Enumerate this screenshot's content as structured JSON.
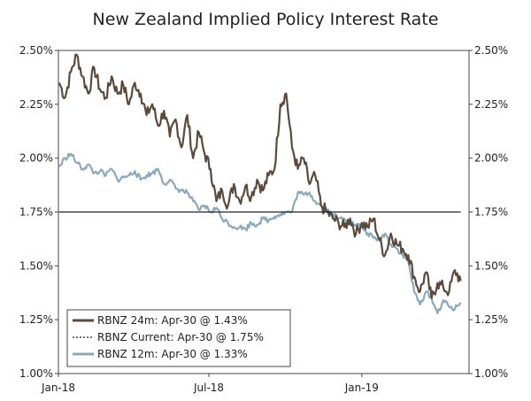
{
  "chart_data": {
    "type": "line",
    "title": "New Zealand Implied Policy Interest Rate",
    "ylim": [
      1.0,
      2.5
    ],
    "y_ticks": [
      "1.00%",
      "1.25%",
      "1.50%",
      "1.75%",
      "2.00%",
      "2.25%",
      "2.50%"
    ],
    "x_ticks": [
      "Jan-18",
      "Jul-18",
      "Jan-19"
    ],
    "grid": false,
    "legend_position": "bottom-left",
    "legend": [
      "RBNZ 24m: Apr-30 @ 1.43%",
      "RBNZ Current: Apr-30 @ 1.75%",
      "RBNZ 12m: Apr-30 @ 1.33%"
    ],
    "series": [
      {
        "name": "RBNZ 24m",
        "color": "#5a4a3e",
        "style": "solid",
        "x": [
          "2018-01-02",
          "2018-01-09",
          "2018-01-16",
          "2018-01-23",
          "2018-01-30",
          "2018-02-06",
          "2018-02-13",
          "2018-02-20",
          "2018-02-27",
          "2018-03-06",
          "2018-03-13",
          "2018-03-20",
          "2018-03-27",
          "2018-04-03",
          "2018-04-10",
          "2018-04-17",
          "2018-04-24",
          "2018-05-01",
          "2018-05-08",
          "2018-05-15",
          "2018-05-22",
          "2018-05-29",
          "2018-06-05",
          "2018-06-12",
          "2018-06-19",
          "2018-06-26",
          "2018-07-03",
          "2018-07-10",
          "2018-07-17",
          "2018-07-24",
          "2018-07-31",
          "2018-08-07",
          "2018-08-14",
          "2018-08-21",
          "2018-08-28",
          "2018-09-04",
          "2018-09-11",
          "2018-09-18",
          "2018-09-25",
          "2018-10-02",
          "2018-10-09",
          "2018-10-16",
          "2018-10-23",
          "2018-10-30",
          "2018-11-06",
          "2018-11-13",
          "2018-11-20",
          "2018-11-27",
          "2018-12-04",
          "2018-12-11",
          "2018-12-18",
          "2018-12-25",
          "2019-01-01",
          "2019-01-08",
          "2019-01-15",
          "2019-01-22",
          "2019-01-29",
          "2019-02-05",
          "2019-02-12",
          "2019-02-19",
          "2019-02-26",
          "2019-03-05",
          "2019-03-12",
          "2019-03-19",
          "2019-03-26",
          "2019-04-02",
          "2019-04-09",
          "2019-04-16",
          "2019-04-23",
          "2019-04-30"
        ],
        "values": [
          2.35,
          2.28,
          2.4,
          2.48,
          2.38,
          2.3,
          2.42,
          2.32,
          2.28,
          2.38,
          2.3,
          2.34,
          2.25,
          2.35,
          2.3,
          2.2,
          2.25,
          2.15,
          2.22,
          2.1,
          2.18,
          2.05,
          2.2,
          2.0,
          2.12,
          2.02,
          1.95,
          1.8,
          1.85,
          1.78,
          1.88,
          1.8,
          1.87,
          1.82,
          1.9,
          1.85,
          1.92,
          1.95,
          2.25,
          2.3,
          2.05,
          1.95,
          2.0,
          1.88,
          1.92,
          1.78,
          1.75,
          1.72,
          1.7,
          1.68,
          1.72,
          1.65,
          1.7,
          1.68,
          1.72,
          1.62,
          1.55,
          1.65,
          1.6,
          1.58,
          1.55,
          1.45,
          1.38,
          1.47,
          1.35,
          1.42,
          1.4,
          1.38,
          1.48,
          1.43
        ]
      },
      {
        "name": "RBNZ Current",
        "color": "#222222",
        "style": "solid",
        "x": [
          "2018-01-02",
          "2019-04-30"
        ],
        "values": [
          1.75,
          1.75
        ]
      },
      {
        "name": "RBNZ 12m",
        "color": "#8fa8b8",
        "style": "solid",
        "x": [
          "2018-01-02",
          "2018-01-09",
          "2018-01-16",
          "2018-01-23",
          "2018-01-30",
          "2018-02-06",
          "2018-02-13",
          "2018-02-20",
          "2018-02-27",
          "2018-03-06",
          "2018-03-13",
          "2018-03-20",
          "2018-03-27",
          "2018-04-03",
          "2018-04-10",
          "2018-04-17",
          "2018-04-24",
          "2018-05-01",
          "2018-05-08",
          "2018-05-15",
          "2018-05-22",
          "2018-05-29",
          "2018-06-05",
          "2018-06-12",
          "2018-06-19",
          "2018-06-26",
          "2018-07-03",
          "2018-07-10",
          "2018-07-17",
          "2018-07-24",
          "2018-07-31",
          "2018-08-07",
          "2018-08-14",
          "2018-08-21",
          "2018-08-28",
          "2018-09-04",
          "2018-09-11",
          "2018-09-18",
          "2018-09-25",
          "2018-10-02",
          "2018-10-09",
          "2018-10-16",
          "2018-10-23",
          "2018-10-30",
          "2018-11-06",
          "2018-11-13",
          "2018-11-20",
          "2018-11-27",
          "2018-12-04",
          "2018-12-11",
          "2018-12-18",
          "2018-12-25",
          "2019-01-01",
          "2019-01-08",
          "2019-01-15",
          "2019-01-22",
          "2019-01-29",
          "2019-02-05",
          "2019-02-12",
          "2019-02-19",
          "2019-02-26",
          "2019-03-05",
          "2019-03-12",
          "2019-03-19",
          "2019-03-26",
          "2019-04-02",
          "2019-04-09",
          "2019-04-16",
          "2019-04-23",
          "2019-04-30"
        ],
        "values": [
          1.96,
          2.0,
          2.02,
          1.98,
          1.95,
          1.97,
          1.93,
          1.94,
          1.92,
          1.95,
          1.9,
          1.91,
          1.92,
          1.94,
          1.9,
          1.92,
          1.93,
          1.95,
          1.88,
          1.9,
          1.86,
          1.85,
          1.84,
          1.8,
          1.76,
          1.78,
          1.75,
          1.77,
          1.72,
          1.7,
          1.68,
          1.68,
          1.67,
          1.7,
          1.69,
          1.72,
          1.71,
          1.73,
          1.74,
          1.75,
          1.75,
          1.84,
          1.83,
          1.84,
          1.8,
          1.78,
          1.76,
          1.74,
          1.72,
          1.72,
          1.7,
          1.69,
          1.68,
          1.65,
          1.63,
          1.62,
          1.65,
          1.6,
          1.58,
          1.55,
          1.52,
          1.38,
          1.32,
          1.38,
          1.35,
          1.28,
          1.34,
          1.31,
          1.3,
          1.33
        ]
      }
    ]
  }
}
